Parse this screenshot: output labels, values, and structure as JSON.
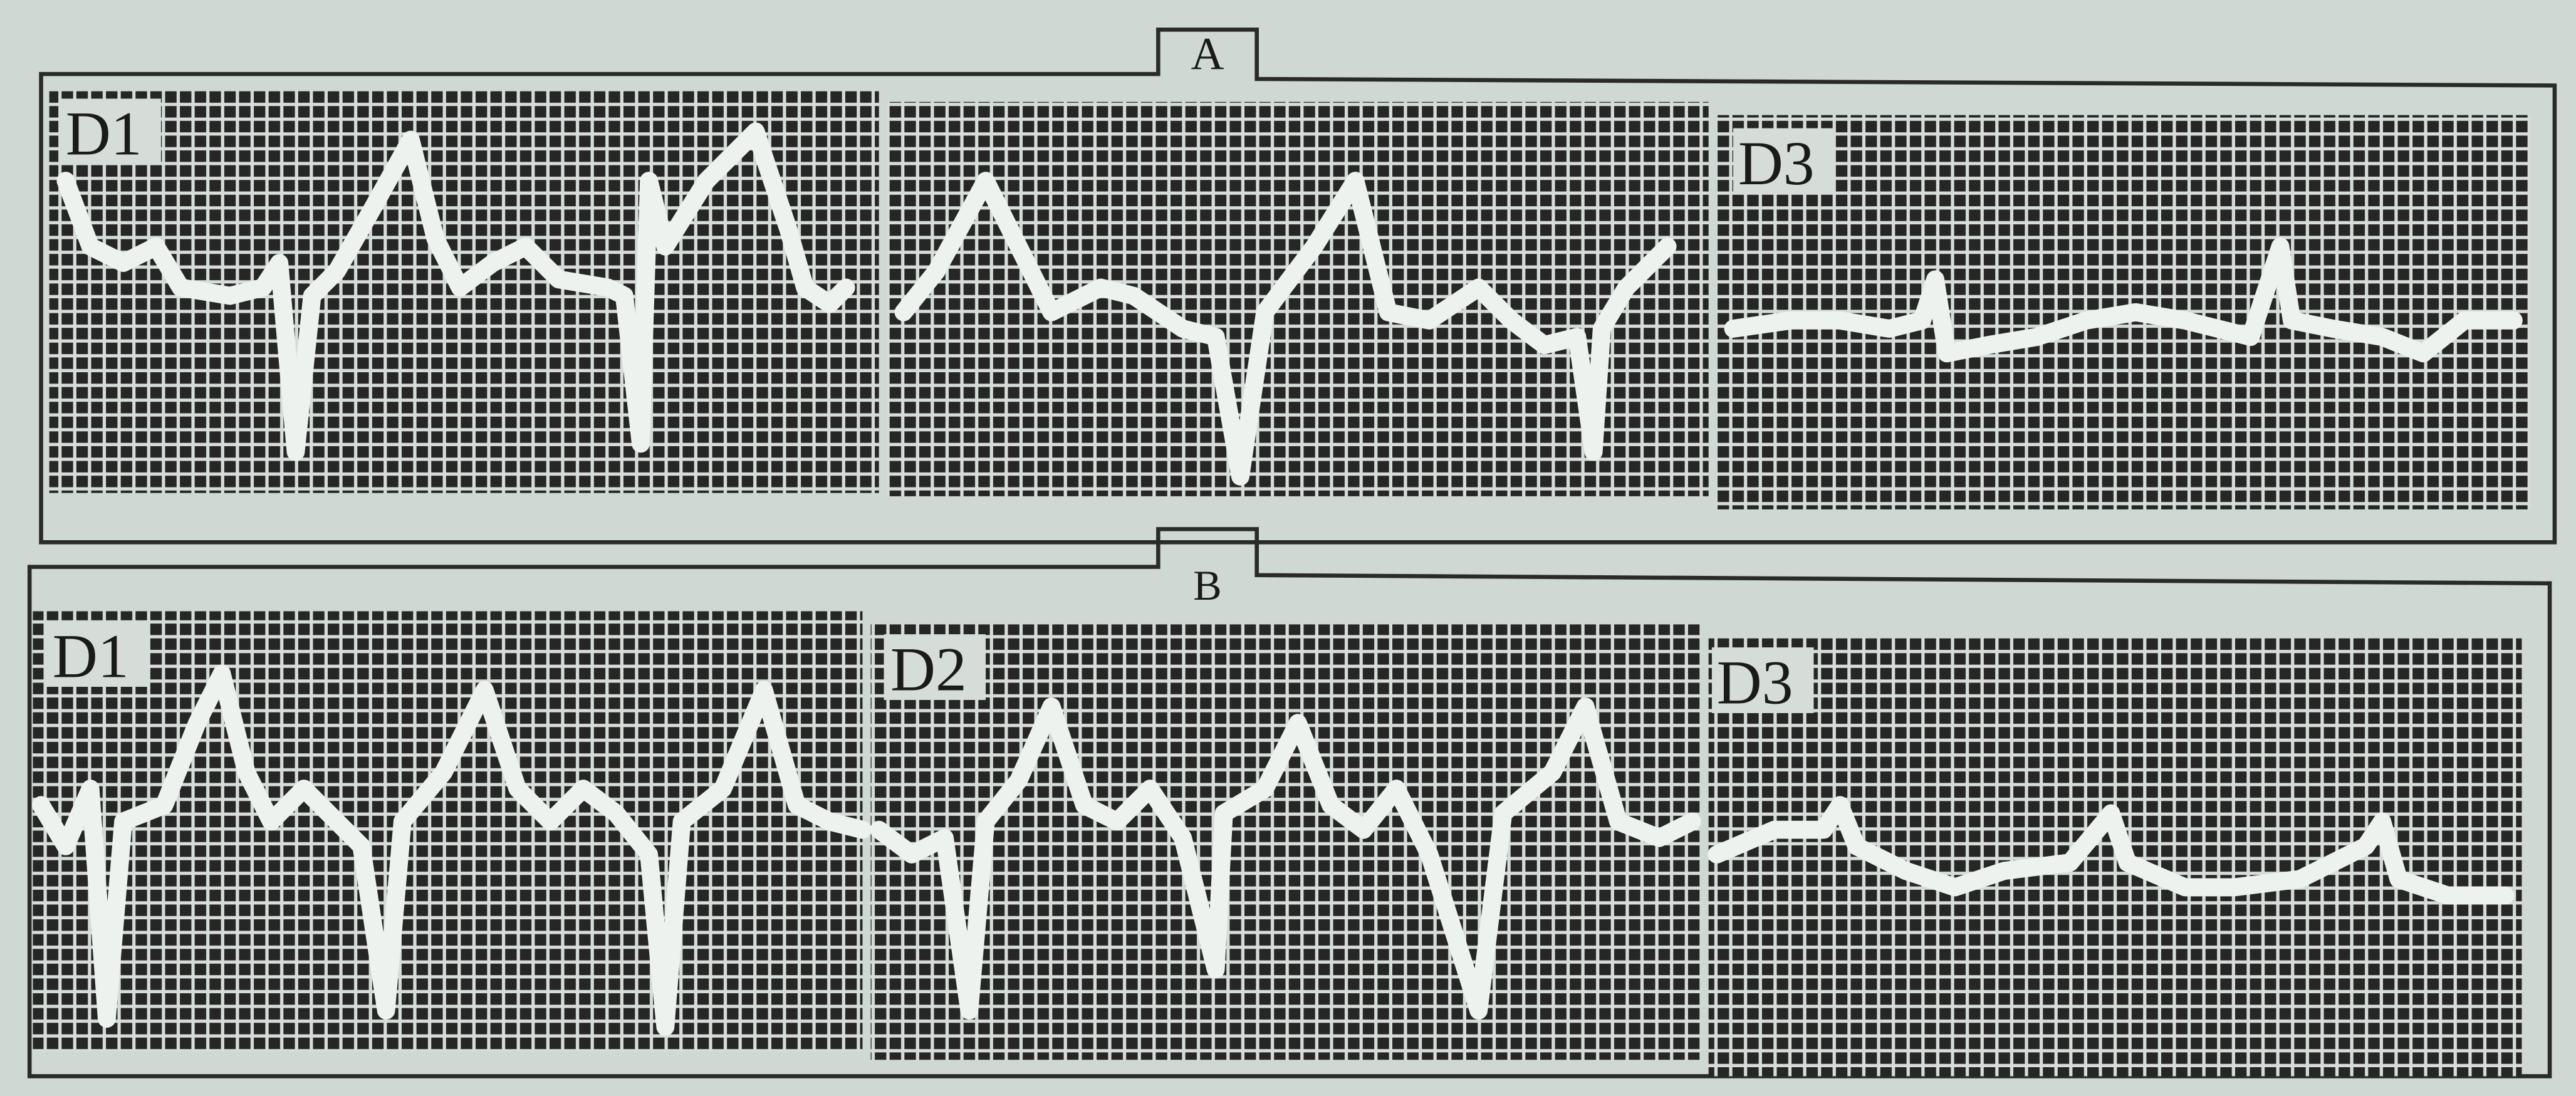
{
  "panels": [
    {
      "label": "A",
      "lead_labels": [
        "D1",
        "D3"
      ]
    },
    {
      "label": "B",
      "lead_labels": [
        "D1",
        "D2",
        "D3"
      ]
    }
  ]
}
